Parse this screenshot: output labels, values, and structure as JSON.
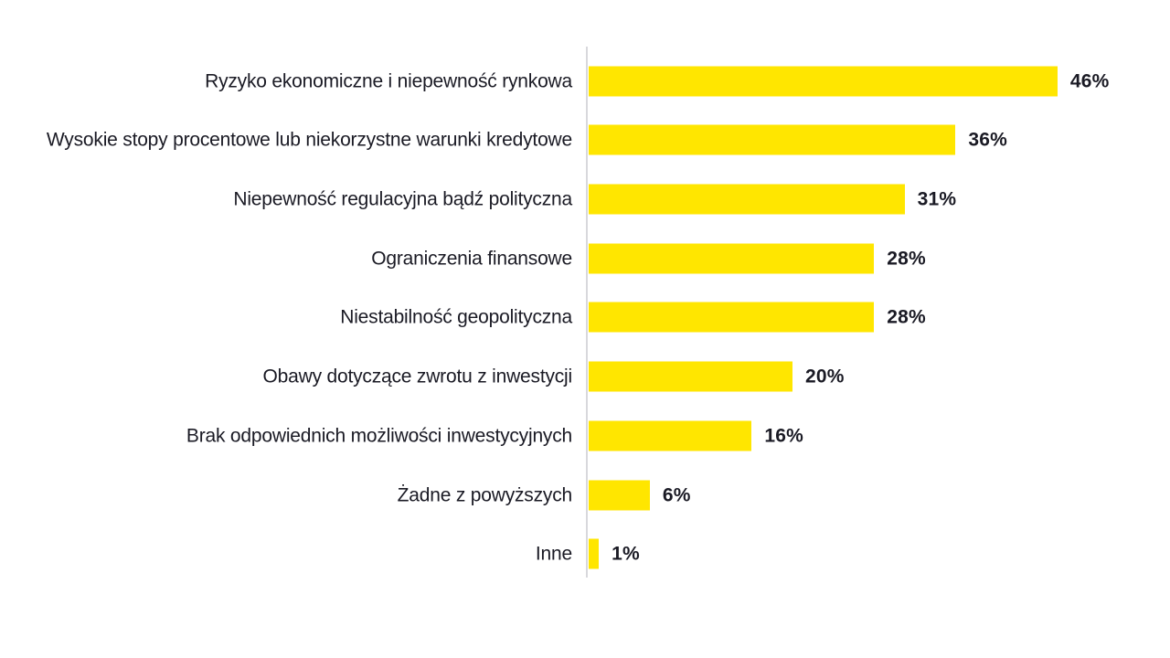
{
  "chart_data": {
    "type": "bar",
    "orientation": "horizontal",
    "title": "",
    "xlabel": "",
    "ylabel": "",
    "categories": [
      "Ryzyko ekonomiczne i niepewność rynkowa",
      "Wysokie stopy procentowe lub niekorzystne warunki kredytowe",
      "Niepewność regulacyjna bądź polityczna",
      "Ograniczenia finansowe",
      "Niestabilność geopolityczna",
      "Obawy dotyczące zwrotu z inwestycji",
      "Brak odpowiednich możliwości inwestycyjnych",
      "Żadne z powyższych",
      "Inne"
    ],
    "values": [
      46,
      36,
      31,
      28,
      28,
      20,
      16,
      6,
      1
    ],
    "value_labels": [
      "46%",
      "36%",
      "31%",
      "28%",
      "28%",
      "20%",
      "16%",
      "6%",
      "1%"
    ],
    "xlim": [
      0,
      55
    ],
    "grid": false,
    "legend": false,
    "bar_color": "#FFE600",
    "axis_line_color": "#D8D8DC",
    "text_color": "#1A1A24",
    "background_color": "#FFFFFF"
  }
}
